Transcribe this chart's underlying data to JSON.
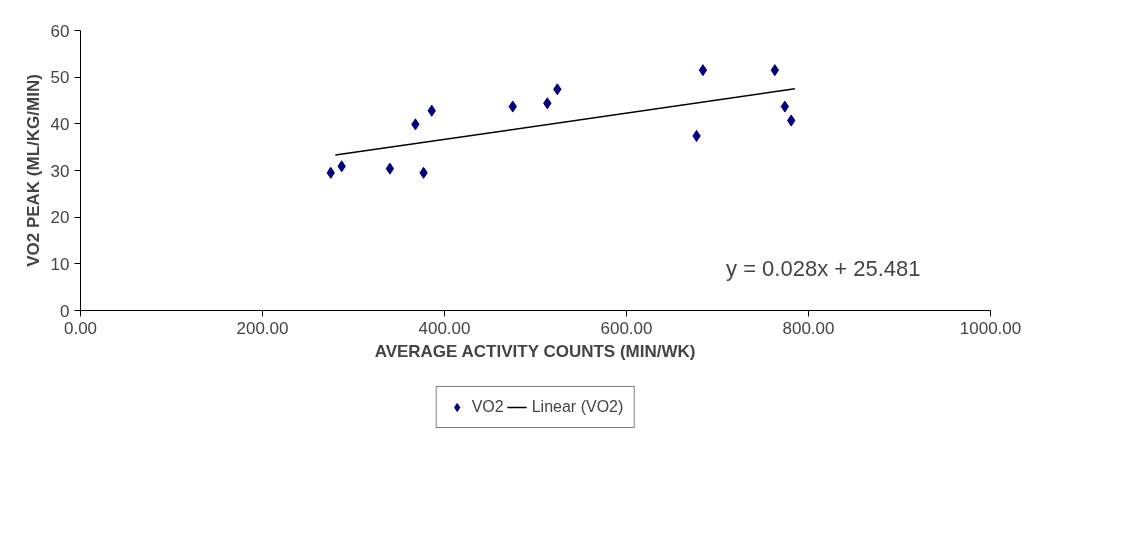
{
  "chart_data": {
    "type": "scatter",
    "xlabel": "AVERAGE ACTIVITY COUNTS (MIN/WK)",
    "ylabel": "VO2 PEAK (ML/KG/MIN)",
    "xlim": [
      0,
      1000
    ],
    "ylim": [
      0,
      60
    ],
    "xticks": [
      {
        "value": 0,
        "label": "0.00"
      },
      {
        "value": 200,
        "label": "200.00"
      },
      {
        "value": 400,
        "label": "400.00"
      },
      {
        "value": 600,
        "label": "600.00"
      },
      {
        "value": 800,
        "label": "800.00"
      },
      {
        "value": 1000,
        "label": "1000.00"
      }
    ],
    "yticks": [
      0,
      10,
      20,
      30,
      40,
      50,
      60
    ],
    "series": [
      {
        "name": "VO2",
        "color": "#000080",
        "marker": "diamond",
        "x": [
          275,
          287,
          340,
          377,
          368,
          386,
          475,
          513,
          524,
          677,
          684,
          763,
          774,
          781
        ],
        "values": [
          29.5,
          30.9,
          30.4,
          29.5,
          39.9,
          42.8,
          43.7,
          44.4,
          47.4,
          37.4,
          51.5,
          51.5,
          43.7,
          40.7
        ]
      },
      {
        "name": "Linear (VO2)",
        "type": "line",
        "color": "#000000",
        "line_style": "solid",
        "x": [
          280,
          785
        ],
        "values": [
          33.3,
          47.5
        ]
      }
    ],
    "annotations": [
      "y = 0.028x + 25.481"
    ],
    "legend": "bottom",
    "grid": false
  }
}
